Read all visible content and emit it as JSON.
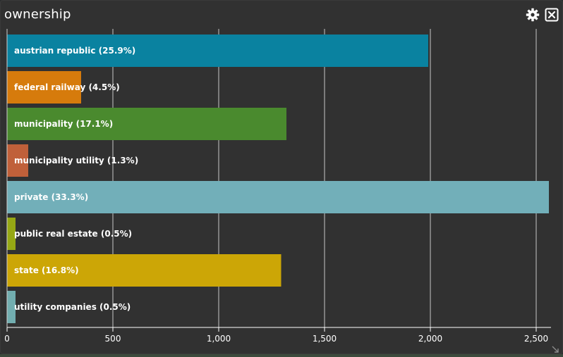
{
  "window": {
    "title": "ownership",
    "settings_icon": "gear-icon",
    "close_icon": "close-icon"
  },
  "colors": {
    "panel_bg": "#313131",
    "grid": "#d8d8d8",
    "axis": "#ffffff"
  },
  "chart_data": {
    "type": "bar",
    "orientation": "horizontal",
    "categories": [
      "austrian republic (25.9%)",
      "federal railway (4.5%)",
      "municipality (17.1%)",
      "municipality utility (1.3%)",
      "private (33.3%)",
      "public real estate (0.5%)",
      "state (16.8%)",
      "utility companies (0.5%)"
    ],
    "values": [
      1990,
      350,
      1320,
      100,
      2560,
      40,
      1295,
      40
    ],
    "colors": [
      "#0a82a0",
      "#d67b0c",
      "#4a8a2e",
      "#c0603a",
      "#72afb9",
      "#96a814",
      "#cca606",
      "#72aeb0"
    ],
    "xlim": [
      0,
      2570
    ],
    "xticks": [
      0,
      500,
      1000,
      1500,
      2000,
      2500
    ],
    "xtick_labels": [
      "0",
      "500",
      "1,000",
      "1,500",
      "2,000",
      "2,500"
    ],
    "grid": true,
    "title": "ownership",
    "xlabel": "",
    "ylabel": ""
  }
}
